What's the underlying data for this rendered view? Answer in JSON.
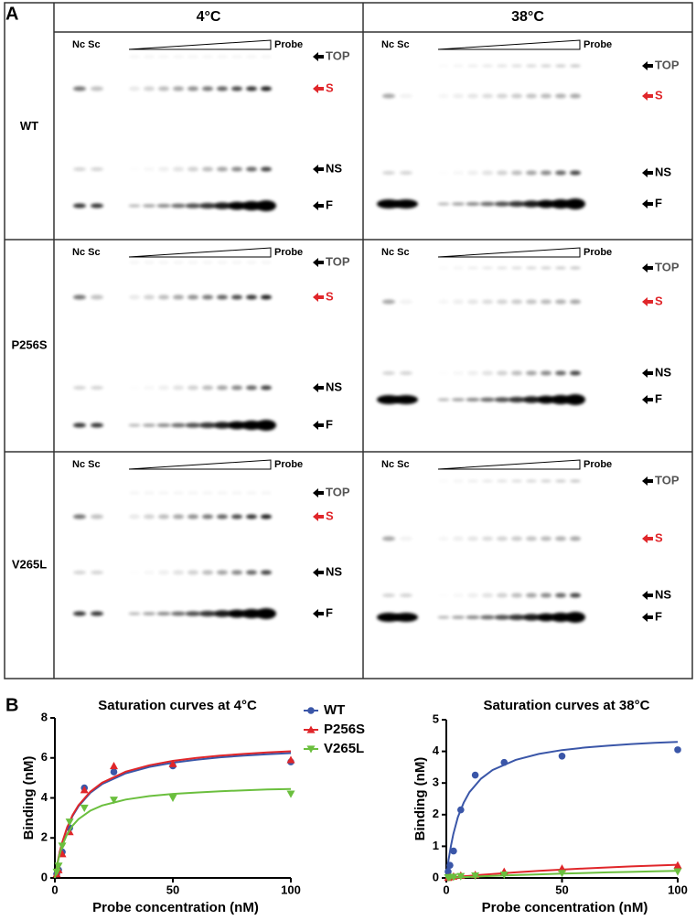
{
  "panel_labels": [
    "A",
    "B"
  ],
  "gel_panel": {
    "columns": [
      "4°C",
      "38°C"
    ],
    "rows": [
      {
        "label": "WT",
        "cells": [
          {
            "lanes": "Nc Sc",
            "probe": "Probe",
            "bands": [
              "TOP",
              "S",
              "NS",
              "F"
            ]
          },
          {
            "lanes": "Nc Sc",
            "probe": "Probe",
            "bands": [
              "TOP",
              "S",
              "NS",
              "F"
            ]
          }
        ]
      },
      {
        "label": "P256S",
        "cells": [
          {
            "lanes": "Nc Sc",
            "probe": "Probe",
            "bands": [
              "TOP",
              "S",
              "NS",
              "F"
            ]
          },
          {
            "lanes": "Nc Sc",
            "probe": "Probe",
            "bands": [
              "TOP",
              "S",
              "NS",
              "F"
            ]
          }
        ]
      },
      {
        "label": "V265L",
        "cells": [
          {
            "lanes": "Nc Sc",
            "probe": "Probe",
            "bands": [
              "TOP",
              "S",
              "NS",
              "F"
            ]
          },
          {
            "lanes": "Nc Sc",
            "probe": "Probe",
            "bands": [
              "TOP",
              "S",
              "NS",
              "F"
            ]
          }
        ]
      }
    ]
  },
  "chart_data": [
    {
      "type": "scatter",
      "title": "Saturation curves at 4°C",
      "x_label": "Probe concentration (nM)",
      "y_label": "Binding (nM)",
      "xlim": [
        0,
        100
      ],
      "xticks": [
        0,
        50,
        100
      ],
      "ylim": [
        0,
        8
      ],
      "yticks": [
        0,
        2,
        4,
        6,
        8
      ],
      "legend": "outside-right",
      "x": [
        0.78,
        1.56,
        3.125,
        6.25,
        12.5,
        25,
        50,
        100
      ],
      "series": [
        {
          "name": "WT",
          "color": "#3a56a8",
          "marker": "circle",
          "values": [
            0.2,
            0.4,
            1.3,
            2.5,
            4.5,
            5.3,
            5.6,
            5.8
          ],
          "fit": {
            "x": [
              0,
              1,
              2,
              3,
              5,
              7.5,
              10,
              15,
              20,
              30,
              40,
              50,
              60,
              70,
              80,
              90,
              100
            ],
            "values": [
              0,
              0.68,
              1.24,
              1.7,
              2.43,
              3.09,
              3.58,
              4.25,
              4.69,
              5.23,
              5.55,
              5.76,
              5.91,
              6.03,
              6.11,
              6.18,
              6.24
            ]
          }
        },
        {
          "name": "P256S",
          "color": "#e0262a",
          "marker": "triangle",
          "values": [
            0.2,
            0.4,
            1.2,
            2.3,
            4.4,
            5.6,
            5.7,
            5.9
          ],
          "fit": {
            "x": [
              0,
              1,
              2,
              3,
              5,
              7.5,
              10,
              15,
              20,
              30,
              40,
              50,
              60,
              70,
              80,
              90,
              100
            ],
            "values": [
              0,
              0.69,
              1.26,
              1.73,
              2.46,
              3.14,
              3.63,
              4.31,
              4.76,
              5.31,
              5.63,
              5.85,
              6,
              6.11,
              6.2,
              6.27,
              6.33
            ]
          }
        },
        {
          "name": "V265L",
          "color": "#6bbf3e",
          "marker": "triangle-down",
          "values": [
            0.3,
            0.6,
            1.6,
            2.8,
            3.5,
            3.9,
            4.0,
            4.2
          ],
          "fit": {
            "x": [
              0,
              1,
              2,
              3,
              5,
              7.5,
              10,
              15,
              20,
              30,
              40,
              50,
              60,
              70,
              80,
              90,
              100
            ],
            "values": [
              0,
              0.67,
              1.18,
              1.57,
              2.14,
              2.61,
              2.94,
              3.36,
              3.62,
              3.92,
              4.09,
              4.2,
              4.27,
              4.33,
              4.38,
              4.42,
              4.45
            ]
          }
        }
      ]
    },
    {
      "type": "scatter",
      "title": "Saturation curves at 38°C",
      "x_label": "Probe concentration (nM)",
      "y_label": "Binding (nM)",
      "xlim": [
        0,
        100
      ],
      "xticks": [
        0,
        50,
        100
      ],
      "ylim": [
        0,
        5
      ],
      "yticks": [
        0,
        1,
        2,
        3,
        4,
        5
      ],
      "legend": "none",
      "x": [
        0.78,
        1.56,
        3.125,
        6.25,
        12.5,
        25,
        50,
        100
      ],
      "series": [
        {
          "color": "#3a56a8",
          "marker": "circle",
          "values": [
            0.2,
            0.4,
            0.85,
            2.15,
            3.25,
            3.65,
            3.85,
            4.05
          ],
          "fit": {
            "x": [
              0,
              1,
              2,
              3,
              5,
              7.5,
              10,
              15,
              20,
              30,
              40,
              50,
              60,
              70,
              80,
              90,
              100
            ],
            "values": [
              0,
              0.58,
              1.02,
              1.38,
              1.92,
              2.38,
              2.71,
              3.14,
              3.41,
              3.73,
              3.92,
              4.04,
              4.12,
              4.18,
              4.23,
              4.27,
              4.3
            ]
          }
        },
        {
          "color": "#e0262a",
          "marker": "triangle",
          "values": [
            0.01,
            0.03,
            0.05,
            0.08,
            0.1,
            0.2,
            0.3,
            0.4
          ],
          "fit": {
            "x": [
              0,
              1,
              2,
              3,
              5,
              7.5,
              10,
              15,
              20,
              30,
              40,
              50,
              60,
              70,
              80,
              90,
              100
            ],
            "values": [
              0,
              0.007,
              0.014,
              0.021,
              0.034,
              0.051,
              0.067,
              0.097,
              0.125,
              0.176,
              0.222,
              0.263,
              0.3,
              0.333,
              0.364,
              0.391,
              0.417
            ]
          }
        },
        {
          "color": "#6bbf3e",
          "marker": "triangle-down",
          "values": [
            0.01,
            0.02,
            0.03,
            0.05,
            0.07,
            0.1,
            0.15,
            0.2
          ],
          "fit": {
            "x": [
              0,
              1,
              2,
              3,
              5,
              7.5,
              10,
              15,
              20,
              30,
              40,
              50,
              60,
              70,
              80,
              90,
              100
            ],
            "values": [
              0,
              0.004,
              0.007,
              0.01,
              0.017,
              0.025,
              0.033,
              0.049,
              0.063,
              0.09,
              0.114,
              0.136,
              0.157,
              0.175,
              0.192,
              0.208,
              0.222
            ]
          }
        }
      ]
    }
  ]
}
